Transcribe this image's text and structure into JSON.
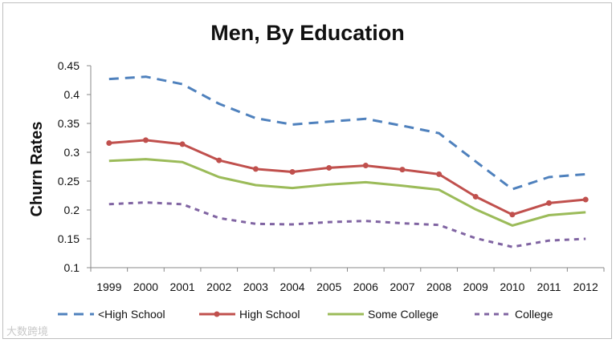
{
  "chart_data": {
    "type": "line",
    "title": "Men, By Education",
    "xlabel": "",
    "ylabel": "Churn Rates",
    "categories": [
      "1999",
      "2000",
      "2001",
      "2002",
      "2003",
      "2004",
      "2005",
      "2006",
      "2007",
      "2008",
      "2009",
      "2010",
      "2011",
      "2012"
    ],
    "ylim": [
      0.1,
      0.45
    ],
    "yticks": [
      "0.1",
      "0.15",
      "0.2",
      "0.25",
      "0.3",
      "0.35",
      "0.4",
      "0.45"
    ],
    "grid": false,
    "legend": "bottom",
    "series": [
      {
        "name": "<High School",
        "color": "#4f81bd",
        "style": "dashed",
        "values": [
          0.427,
          0.431,
          0.418,
          0.384,
          0.359,
          0.348,
          0.353,
          0.358,
          0.346,
          0.333,
          0.284,
          0.236,
          0.257,
          0.262
        ]
      },
      {
        "name": "High School",
        "color": "#c0504d",
        "style": "solid-markers",
        "values": [
          0.316,
          0.321,
          0.314,
          0.286,
          0.271,
          0.266,
          0.273,
          0.277,
          0.27,
          0.262,
          0.223,
          0.192,
          0.212,
          0.218
        ]
      },
      {
        "name": "Some College",
        "color": "#9bbb59",
        "style": "solid",
        "values": [
          0.285,
          0.288,
          0.283,
          0.257,
          0.243,
          0.238,
          0.244,
          0.248,
          0.242,
          0.235,
          0.201,
          0.173,
          0.191,
          0.196
        ]
      },
      {
        "name": "College",
        "color": "#8064a2",
        "style": "dashed",
        "values": [
          0.21,
          0.213,
          0.21,
          0.186,
          0.176,
          0.175,
          0.179,
          0.181,
          0.177,
          0.174,
          0.151,
          0.136,
          0.147,
          0.15
        ]
      }
    ]
  },
  "watermark": "大数跨境"
}
